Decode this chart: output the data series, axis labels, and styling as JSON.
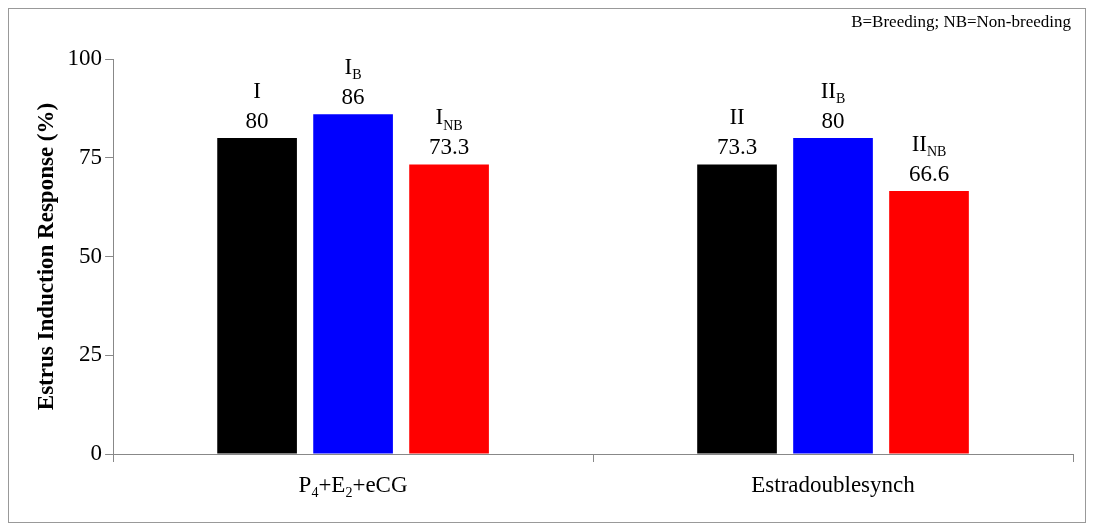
{
  "chart_data": {
    "type": "bar",
    "ylabel": "Estrus Induction Response (%)",
    "categories": [
      "P$_{4}$+E$_{2}$+eCG",
      "Estradoublesynch"
    ],
    "series": [
      {
        "color": "#000000",
        "values": [
          80,
          73.3
        ],
        "value_labels": [
          "I\n80",
          "II\n73.3"
        ]
      },
      {
        "color": "#0000ff",
        "values": [
          86,
          80
        ],
        "value_labels": [
          "I$_{B}$\n86",
          "II$_{B}$\n80"
        ]
      },
      {
        "color": "#ff0000",
        "values": [
          73.3,
          66.6
        ],
        "value_labels": [
          "I$_{NB}$\n73.3",
          "II$_{NB}$\n66.6"
        ]
      }
    ],
    "ylim": [
      0,
      100
    ],
    "yticks": [
      0,
      25,
      50,
      75,
      100
    ],
    "grid": false,
    "legend": false,
    "annotations": [
      "B=Breeding; NB=Non-breeding"
    ]
  }
}
